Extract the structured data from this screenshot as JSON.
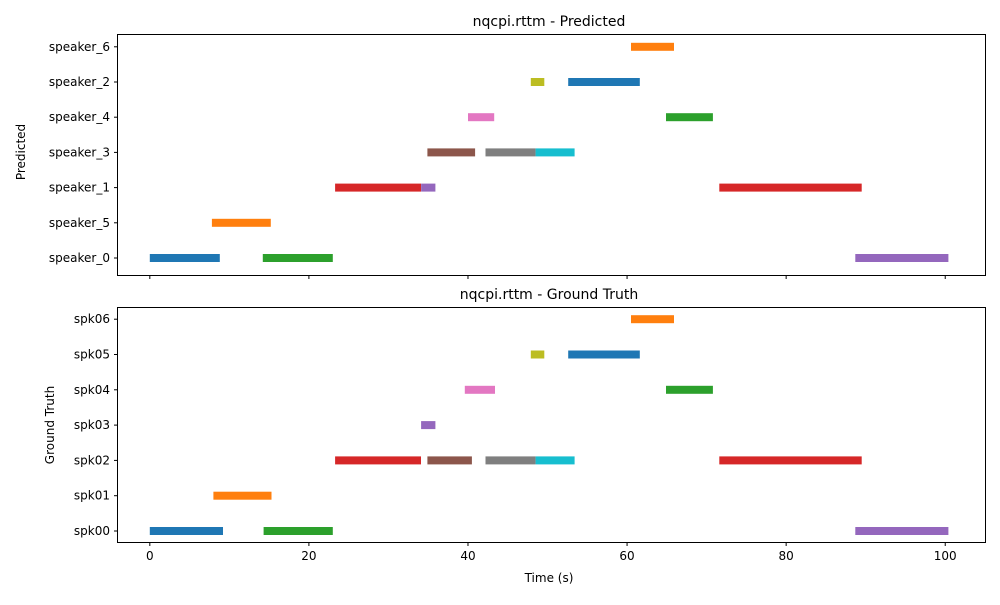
{
  "chart_data": [
    {
      "type": "gantt",
      "title": "nqcpi.rttm - Predicted",
      "xlabel": "",
      "ylabel": "Predicted",
      "xlim": [
        -4,
        105
      ],
      "xticks": [
        0,
        20,
        40,
        60,
        80,
        100
      ],
      "show_xtick_labels": false,
      "grid": false,
      "categories": [
        "speaker_0",
        "speaker_5",
        "speaker_1",
        "speaker_3",
        "speaker_4",
        "speaker_2",
        "speaker_6"
      ],
      "segments": [
        {
          "row": "speaker_0",
          "start": 0.0,
          "end": 8.8,
          "color": "#1f77b4"
        },
        {
          "row": "speaker_0",
          "start": 14.2,
          "end": 23.0,
          "color": "#2ca02c"
        },
        {
          "row": "speaker_0",
          "start": 88.7,
          "end": 100.4,
          "color": "#9467bd"
        },
        {
          "row": "speaker_5",
          "start": 7.8,
          "end": 15.2,
          "color": "#ff7f0e"
        },
        {
          "row": "speaker_1",
          "start": 23.3,
          "end": 34.1,
          "color": "#d62728"
        },
        {
          "row": "speaker_1",
          "start": 34.1,
          "end": 35.9,
          "color": "#9467bd"
        },
        {
          "row": "speaker_1",
          "start": 71.6,
          "end": 89.5,
          "color": "#d62728"
        },
        {
          "row": "speaker_3",
          "start": 34.9,
          "end": 40.9,
          "color": "#8c564b"
        },
        {
          "row": "speaker_3",
          "start": 42.2,
          "end": 48.5,
          "color": "#7f7f7f"
        },
        {
          "row": "speaker_3",
          "start": 48.5,
          "end": 53.4,
          "color": "#17becf"
        },
        {
          "row": "speaker_4",
          "start": 40.0,
          "end": 43.3,
          "color": "#e377c2"
        },
        {
          "row": "speaker_4",
          "start": 64.9,
          "end": 70.8,
          "color": "#2ca02c"
        },
        {
          "row": "speaker_2",
          "start": 47.9,
          "end": 49.6,
          "color": "#bcbd22"
        },
        {
          "row": "speaker_2",
          "start": 52.6,
          "end": 61.6,
          "color": "#1f77b4"
        },
        {
          "row": "speaker_6",
          "start": 60.5,
          "end": 65.9,
          "color": "#ff7f0e"
        }
      ]
    },
    {
      "type": "gantt",
      "title": "nqcpi.rttm - Ground Truth",
      "xlabel": "Time (s)",
      "ylabel": "Ground Truth",
      "xlim": [
        -4,
        105
      ],
      "xticks": [
        0,
        20,
        40,
        60,
        80,
        100
      ],
      "show_xtick_labels": true,
      "grid": false,
      "categories": [
        "spk00",
        "spk01",
        "spk02",
        "spk03",
        "spk04",
        "spk05",
        "spk06"
      ],
      "segments": [
        {
          "row": "spk00",
          "start": 0.0,
          "end": 9.2,
          "color": "#1f77b4"
        },
        {
          "row": "spk00",
          "start": 14.3,
          "end": 23.0,
          "color": "#2ca02c"
        },
        {
          "row": "spk00",
          "start": 88.7,
          "end": 100.4,
          "color": "#9467bd"
        },
        {
          "row": "spk01",
          "start": 8.0,
          "end": 15.3,
          "color": "#ff7f0e"
        },
        {
          "row": "spk02",
          "start": 23.3,
          "end": 34.1,
          "color": "#d62728"
        },
        {
          "row": "spk02",
          "start": 34.9,
          "end": 40.5,
          "color": "#8c564b"
        },
        {
          "row": "spk02",
          "start": 42.2,
          "end": 48.5,
          "color": "#7f7f7f"
        },
        {
          "row": "spk02",
          "start": 48.5,
          "end": 53.4,
          "color": "#17becf"
        },
        {
          "row": "spk02",
          "start": 71.6,
          "end": 89.5,
          "color": "#d62728"
        },
        {
          "row": "spk03",
          "start": 34.1,
          "end": 35.9,
          "color": "#9467bd"
        },
        {
          "row": "spk04",
          "start": 39.6,
          "end": 43.4,
          "color": "#e377c2"
        },
        {
          "row": "spk04",
          "start": 64.9,
          "end": 70.8,
          "color": "#2ca02c"
        },
        {
          "row": "spk05",
          "start": 47.9,
          "end": 49.6,
          "color": "#bcbd22"
        },
        {
          "row": "spk05",
          "start": 52.6,
          "end": 61.6,
          "color": "#1f77b4"
        },
        {
          "row": "spk06",
          "start": 60.5,
          "end": 65.9,
          "color": "#ff7f0e"
        }
      ]
    }
  ]
}
